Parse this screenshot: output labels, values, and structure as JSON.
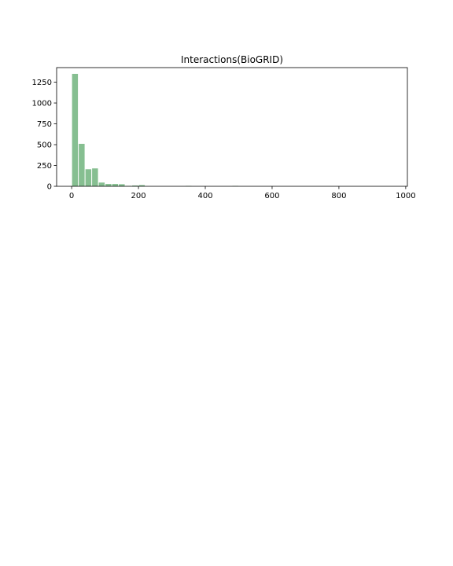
{
  "chart_data": {
    "type": "bar",
    "title": "Interactions(BioGRID)",
    "xlabel": "",
    "ylabel": "",
    "xlim": [
      -45,
      1005
    ],
    "ylim": [
      0,
      1425
    ],
    "xticks": [
      0,
      200,
      400,
      600,
      800,
      1000
    ],
    "yticks": [
      0,
      250,
      500,
      750,
      1000,
      1250
    ],
    "bin_width": 20,
    "bars": [
      {
        "x0": 0,
        "x1": 20,
        "value": 1350
      },
      {
        "x0": 20,
        "x1": 40,
        "value": 510
      },
      {
        "x0": 40,
        "x1": 60,
        "value": 205
      },
      {
        "x0": 60,
        "x1": 80,
        "value": 215
      },
      {
        "x0": 80,
        "x1": 100,
        "value": 45
      },
      {
        "x0": 100,
        "x1": 120,
        "value": 28
      },
      {
        "x0": 120,
        "x1": 140,
        "value": 28
      },
      {
        "x0": 140,
        "x1": 160,
        "value": 25
      },
      {
        "x0": 160,
        "x1": 180,
        "value": 5
      },
      {
        "x0": 180,
        "x1": 200,
        "value": 10
      },
      {
        "x0": 200,
        "x1": 220,
        "value": 15
      },
      {
        "x0": 340,
        "x1": 360,
        "value": 5
      },
      {
        "x0": 480,
        "x1": 500,
        "value": 5
      }
    ],
    "bar_color": "#86bf91",
    "grid": false
  }
}
